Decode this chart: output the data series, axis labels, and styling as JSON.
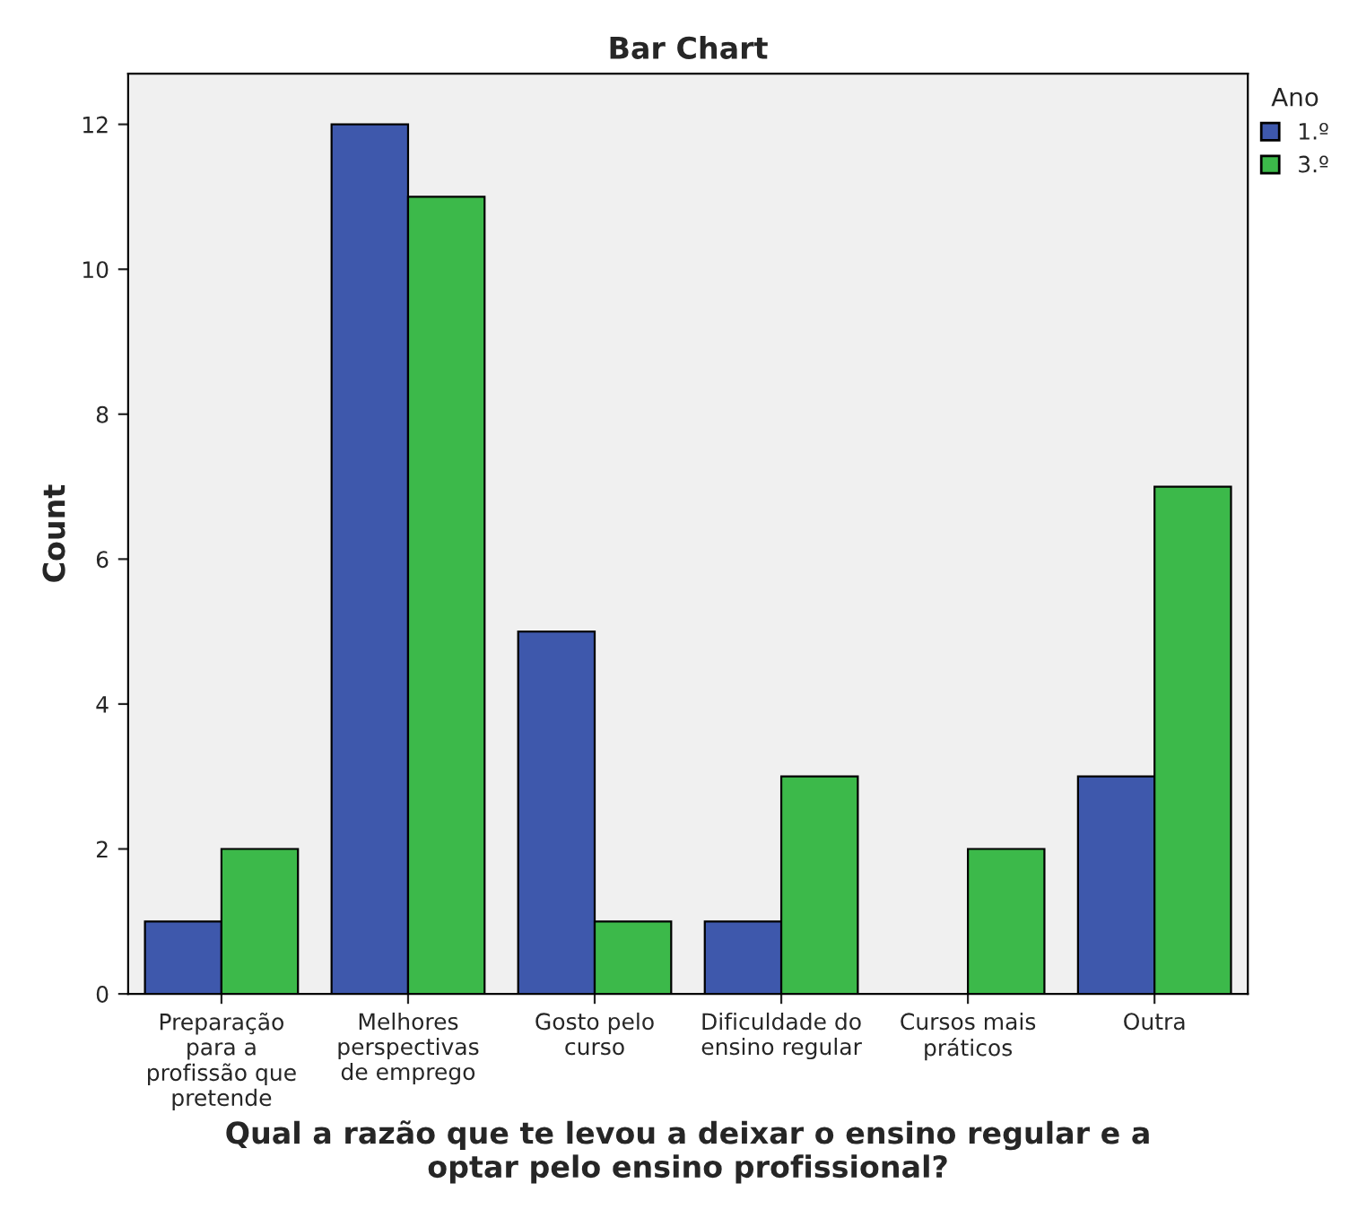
{
  "chart_data": {
    "type": "bar",
    "title": "Bar Chart",
    "xlabel": "Qual a razão que te levou a deixar o ensino regular e a optar pelo ensino profissional?",
    "ylabel": "Count",
    "legend_title": "Ano",
    "categories": [
      "Preparação para a profissão que pretende",
      "Melhores perspectivas de emprego",
      "Gosto pelo curso",
      "Dificuldade do ensino regular",
      "Cursos mais práticos",
      "Outra"
    ],
    "series": [
      {
        "name": "1.º",
        "color": "#3e58ac",
        "values": [
          1,
          12,
          5,
          1,
          null,
          3
        ]
      },
      {
        "name": "3.º",
        "color": "#3cb94a",
        "values": [
          2,
          11,
          1,
          3,
          2,
          7
        ]
      }
    ],
    "ylim": [
      0,
      12.7
    ],
    "yticks": [
      0,
      2,
      4,
      6,
      8,
      10,
      12
    ],
    "grid": false,
    "legend": "top right"
  }
}
